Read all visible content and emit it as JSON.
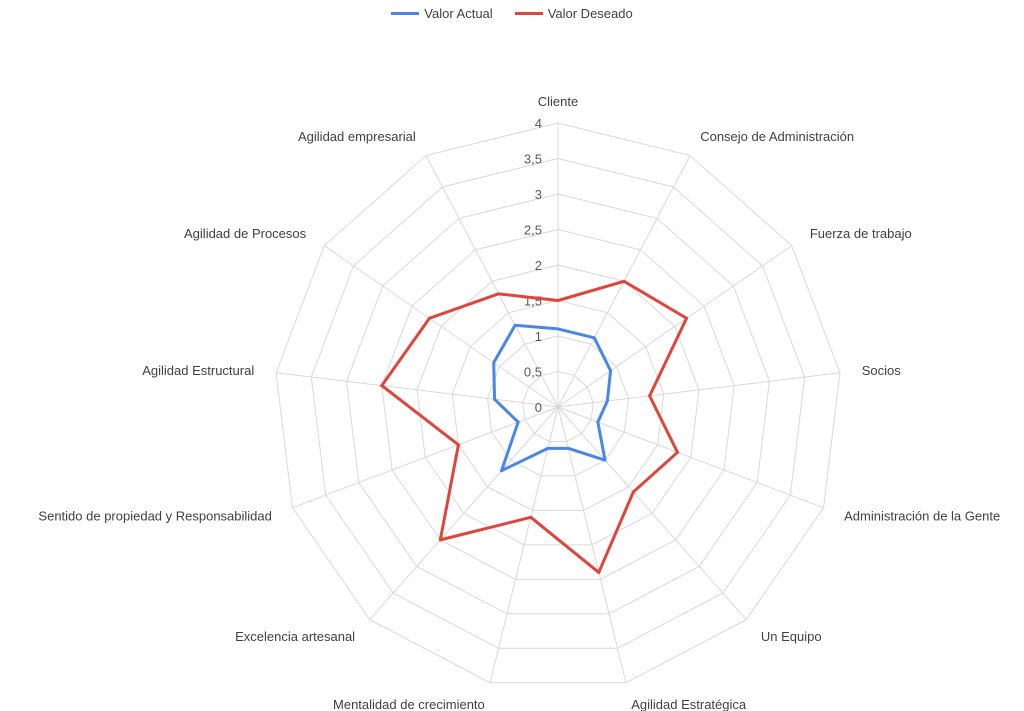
{
  "chart_data": {
    "type": "radar",
    "categories": [
      "Cliente",
      "Consejo de Administración",
      "Fuerza de trabajo",
      "Socios",
      "Administración de la Gente",
      "Un Equipo",
      "Agilidad Estratégica",
      "Mentalidad de crecimiento",
      "Excelencia artesanal",
      "Sentido de propiedad y Responsabilidad",
      "Agilidad Estructural",
      "Agilidad de Procesos",
      "Agilidad empresarial"
    ],
    "series": [
      {
        "name": "Valor Actual",
        "color": "#4a86e8",
        "values": [
          1.1,
          1.1,
          0.9,
          0.7,
          0.6,
          1.0,
          0.6,
          0.6,
          1.2,
          0.6,
          0.9,
          1.1,
          1.3
        ]
      },
      {
        "name": "Valor Deseado",
        "color": "#e0443a",
        "values": [
          1.5,
          2.0,
          2.2,
          1.3,
          1.8,
          1.6,
          2.4,
          1.6,
          2.5,
          1.5,
          2.5,
          2.2,
          1.8
        ]
      }
    ],
    "rlim": [
      0,
      4
    ],
    "ticks": [
      "0",
      "0,5",
      "1",
      "1,5",
      "2",
      "2,5",
      "3",
      "3,5",
      "4"
    ],
    "tick_values": [
      0,
      0.5,
      1,
      1.5,
      2,
      2.5,
      3,
      3.5,
      4
    ],
    "grid": true,
    "legend_position": "top-center"
  }
}
